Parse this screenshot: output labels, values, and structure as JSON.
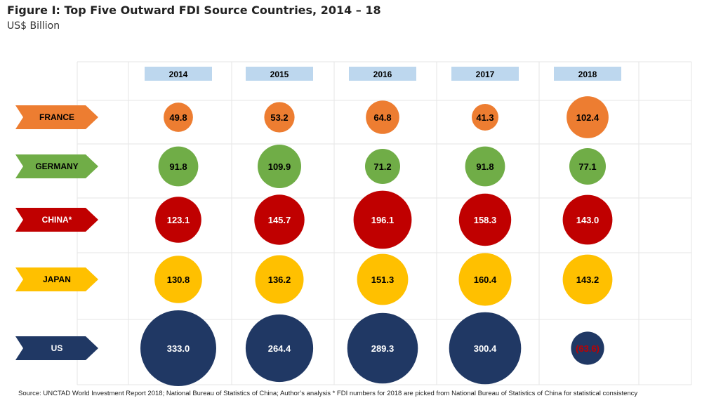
{
  "title": "Figure I: Top Five Outward FDI Source Countries, 2014 – 18",
  "subtitle": "US$ Billion",
  "source": "Source: UNCTAD World Investment Report 2018; National Bureau of Statistics of China; Author’s analysis  * FDI numbers for 2018 are picked from National Bureau of Statistics of China for statistical consistency",
  "chart_data": {
    "type": "bubble",
    "categories": [
      "2014",
      "2015",
      "2016",
      "2017",
      "2018"
    ],
    "series": [
      {
        "name": "FRANCE",
        "color": "#ed7d31",
        "label_color": "#000000",
        "values": [
          49.8,
          53.2,
          64.8,
          41.3,
          102.4
        ],
        "labels": [
          "49.8",
          "53.2",
          "64.8",
          "41.3",
          "102.4"
        ]
      },
      {
        "name": "GERMANY",
        "color": "#70ad47",
        "label_color": "#000000",
        "values": [
          91.8,
          109.9,
          71.2,
          91.8,
          77.1
        ],
        "labels": [
          "91.8",
          "109.9",
          "71.2",
          "91.8",
          "77.1"
        ]
      },
      {
        "name": "CHINA*",
        "color": "#c00000",
        "label_color": "#ffffff",
        "values": [
          123.1,
          145.7,
          196.1,
          158.3,
          143.0
        ],
        "labels": [
          "123.1",
          "145.7",
          "196.1",
          "158.3",
          "143.0"
        ]
      },
      {
        "name": "JAPAN",
        "color": "#ffc000",
        "label_color": "#000000",
        "values": [
          130.8,
          136.2,
          151.3,
          160.4,
          143.2
        ],
        "labels": [
          "130.8",
          "136.2",
          "151.3",
          "160.4",
          "143.2"
        ]
      },
      {
        "name": "US",
        "color": "#203864",
        "label_color": "#ffffff",
        "values": [
          333.0,
          264.4,
          289.3,
          300.4,
          -63.6
        ],
        "labels": [
          "333.0",
          "264.4",
          "289.3",
          "300.4",
          "(63.6)"
        ],
        "negative_label_color": "#c00000"
      }
    ],
    "year_header_color": "#bdd7ee",
    "grid": true
  }
}
